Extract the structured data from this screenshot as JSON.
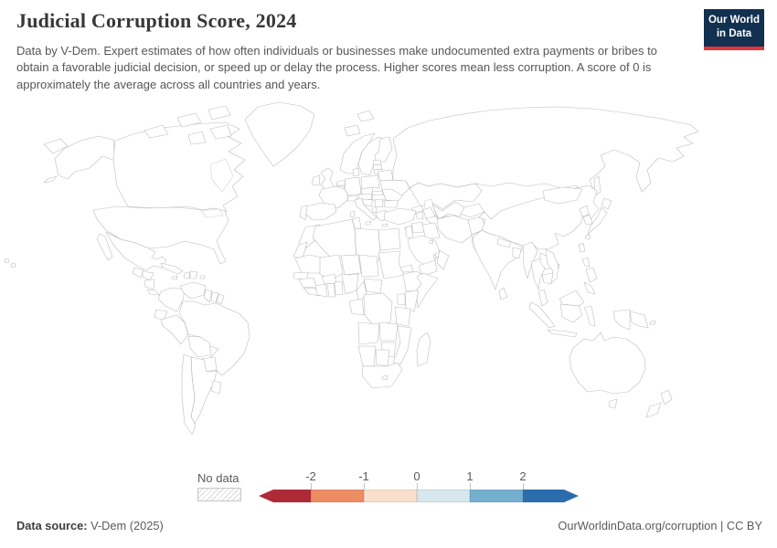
{
  "header": {
    "title": "Judicial Corruption Score, 2024",
    "subtitle": "Data by V-Dem. Expert estimates of how often individuals or businesses make undocumented extra payments or bribes to obtain a favorable judicial decision, or speed up or delay the process. Higher scores mean less corruption. A score of 0 is approximately the average across all countries and years.",
    "logo_line1": "Our World",
    "logo_line2": "in Data",
    "logo_bg": "#12304f",
    "logo_accent": "#e0373f"
  },
  "legend": {
    "no_data_label": "No data",
    "ticks": [
      "-2",
      "-1",
      "0",
      "1",
      "2"
    ]
  },
  "footer": {
    "source_label": "Data source:",
    "source_value": " V-Dem (2025)",
    "link_text": "OurWorldinData.org/corruption",
    "separator": " | ",
    "license_text": "CC BY"
  },
  "chart_data": {
    "type": "choropleth",
    "title": "Judicial Corruption Score, 2024",
    "year": 2024,
    "value_note": "Higher scores mean less corruption; a score of 0 is approximately the average across all countries and years",
    "axis_range": [
      -2,
      2
    ],
    "bin_order": [
      "dark_red",
      "orange",
      "peach",
      "light_blue",
      "mid_blue",
      "dark_blue"
    ],
    "bin_colors": {
      "dark_red": "#ae2a36",
      "orange": "#ee8c62",
      "peach": "#fbdfcd",
      "light_blue": "#d6e8ee",
      "mid_blue": "#74afd0",
      "dark_blue": "#2b6cac"
    },
    "bin_labels": {
      "dark_red": "below -2",
      "orange": "-2 to -1",
      "peach": "-1 to 0",
      "light_blue": "0 to 1",
      "mid_blue": "1 to 2",
      "dark_blue": "above 2",
      "no_data": "No data"
    },
    "countries": {
      "United States": "dark_blue",
      "Canada": "dark_blue",
      "Australia": "dark_blue",
      "New Zealand": "dark_blue",
      "Japan": "dark_blue",
      "Norway": "dark_blue",
      "Sweden": "dark_blue",
      "Finland": "dark_blue",
      "Denmark": "dark_blue",
      "Iceland": "dark_blue",
      "Germany": "dark_blue",
      "Netherlands": "dark_blue",
      "Belgium": "dark_blue",
      "Switzerland": "dark_blue",
      "Austria": "dark_blue",
      "Czechia": "dark_blue",
      "Uruguay": "dark_blue",
      "Costa Rica": "dark_blue",
      "United Kingdom": "mid_blue",
      "Ireland": "mid_blue",
      "France": "mid_blue",
      "Spain": "mid_blue",
      "Portugal": "mid_blue",
      "Chile": "mid_blue",
      "Guyana": "mid_blue",
      "French Guiana": "mid_blue",
      "South Korea": "mid_blue",
      "Taiwan": "mid_blue",
      "Sri Lanka": "mid_blue",
      "Malaysia": "mid_blue",
      "Botswana": "mid_blue",
      "Oman": "mid_blue",
      "Papua New Guinea": "mid_blue",
      "Georgia": "mid_blue",
      "Mexico": "light_blue",
      "Panama": "light_blue",
      "Jamaica": "light_blue",
      "Colombia": "light_blue",
      "Brazil": "light_blue",
      "Argentina": "light_blue",
      "Italy": "light_blue",
      "Poland": "light_blue",
      "Slovakia": "light_blue",
      "Hungary": "light_blue",
      "Croatia": "light_blue",
      "Greece": "light_blue",
      "Romania": "light_blue",
      "Bulgaria": "light_blue",
      "Estonia": "light_blue",
      "Latvia": "light_blue",
      "Lithuania": "light_blue",
      "India": "light_blue",
      "Nepal": "light_blue",
      "Saudi Arabia": "light_blue",
      "United Arab Emirates": "light_blue",
      "Jordan": "light_blue",
      "Kuwait": "light_blue",
      "Cyprus": "light_blue",
      "Tunisia": "light_blue",
      "Senegal": "light_blue",
      "Ghana": "light_blue",
      "Kenya": "light_blue",
      "Namibia": "light_blue",
      "South Africa": "light_blue",
      "Russia": "peach",
      "Mongolia": "peach",
      "Belarus": "peach",
      "Ukraine": "peach",
      "Cuba": "peach",
      "Puerto Rico": "peach",
      "Ecuador": "peach",
      "Peru": "peach",
      "Morocco": "peach",
      "Algeria": "peach",
      "Egypt": "peach",
      "Mali": "peach",
      "Niger": "peach",
      "Central African Republic": "peach",
      "Gabon": "peach",
      "Angola": "peach",
      "Zambia": "peach",
      "Zimbabwe": "peach",
      "Mozambique": "peach",
      "Tanzania": "peach",
      "Uganda": "peach",
      "Lesotho": "peach",
      "Indonesia": "peach",
      "Thailand": "peach",
      "North Korea": "peach",
      "Afghanistan": "peach",
      "Syria": "peach",
      "Iraq": "peach",
      "Guatemala": "orange",
      "Honduras": "orange",
      "Haiti": "orange",
      "Dominican Republic": "orange",
      "Venezuela": "orange",
      "Bolivia": "orange",
      "Paraguay": "orange",
      "Turkey": "orange",
      "Armenia": "orange",
      "Iran": "orange",
      "Yemen": "orange",
      "Libya": "orange",
      "Chad": "orange",
      "Sudan": "orange",
      "Eritrea": "orange",
      "Ethiopia": "orange",
      "Nigeria": "orange",
      "Cameroon": "orange",
      "Guinea": "orange",
      "Sierra Leone": "orange",
      "Cote d'Ivoire": "orange",
      "Burkina Faso": "orange",
      "Benin": "orange",
      "Democratic Republic of Congo": "orange",
      "Madagascar": "orange",
      "Kazakhstan": "orange",
      "Uzbekistan": "orange",
      "Turkmenistan": "orange",
      "Kyrgyzstan": "orange",
      "China": "orange",
      "Pakistan": "orange",
      "Bangladesh": "orange",
      "Myanmar": "orange",
      "Laos": "orange",
      "Vietnam": "orange",
      "Cambodia": "orange",
      "Philippines": "orange",
      "Serbia": "orange",
      "Albania": "orange",
      "Mauritania": "dark_red",
      "Somalia": "dark_red",
      "Nicaragua": "dark_red",
      "Azerbaijan": "dark_red",
      "Bahrain": "dark_red",
      "Greenland": "no_data",
      "Western Sahara": "no_data",
      "Svalbard": "no_data",
      "Suriname": "no_data"
    }
  }
}
